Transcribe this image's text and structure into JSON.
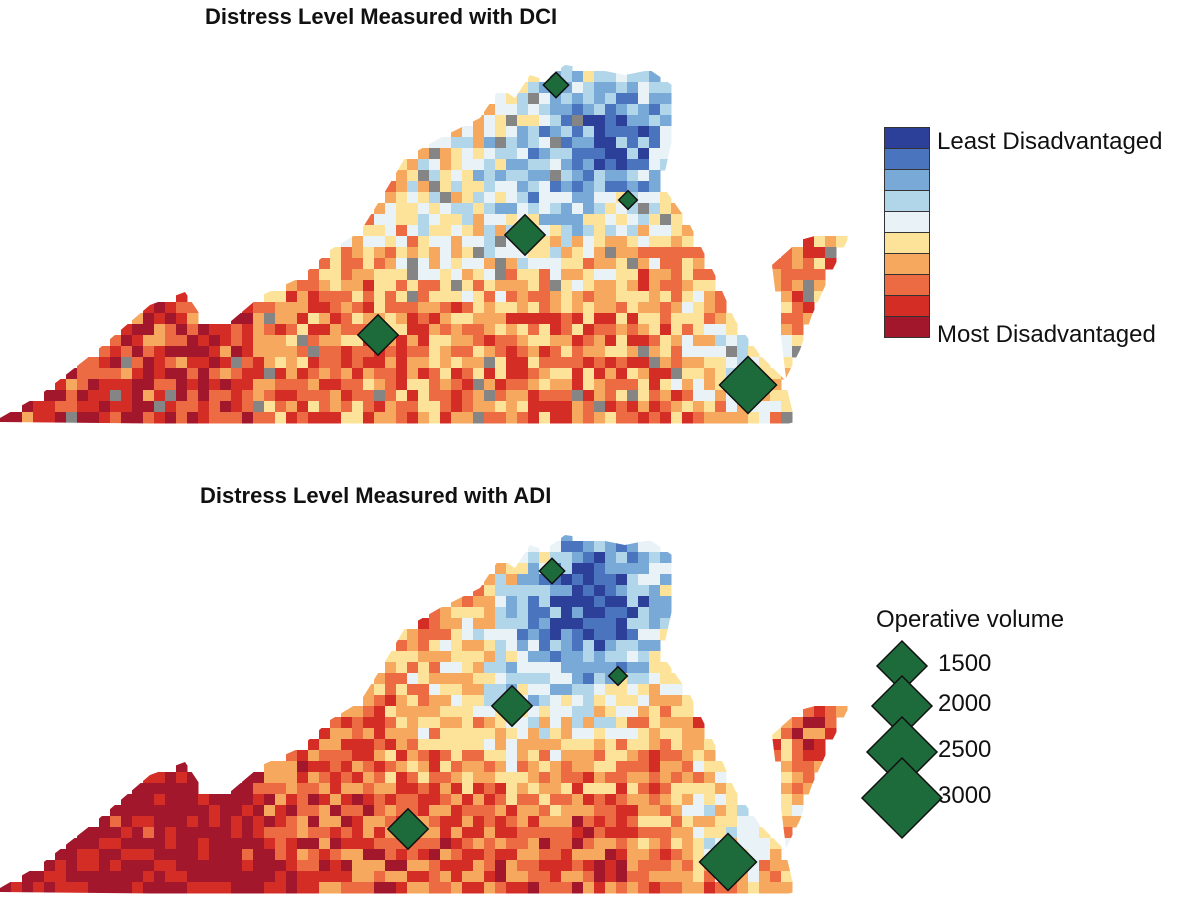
{
  "maps": [
    {
      "title": "Distress Level Measured with DCI",
      "index": "DCI"
    },
    {
      "title": "Distress Level Measured with ADI",
      "index": "ADI"
    }
  ],
  "scale_legend": {
    "top_label": "Least Disadvantaged",
    "bottom_label": "Most Disadvantaged",
    "colors": [
      "#2c3f99",
      "#4a74bd",
      "#79a9d6",
      "#b1d6ea",
      "#e9f3f7",
      "#fde39a",
      "#f6a95e",
      "#ec6b42",
      "#d42d26",
      "#a2172b"
    ]
  },
  "volume_legend": {
    "title": "Operative volume",
    "entries": [
      {
        "label": "1500",
        "volume": 1500
      },
      {
        "label": "2000",
        "volume": 2000
      },
      {
        "label": "2500",
        "volume": 2500
      },
      {
        "label": "3000",
        "volume": 3000
      }
    ],
    "marker_color": "#1d6b3a"
  },
  "no_data_color": "#858585"
}
